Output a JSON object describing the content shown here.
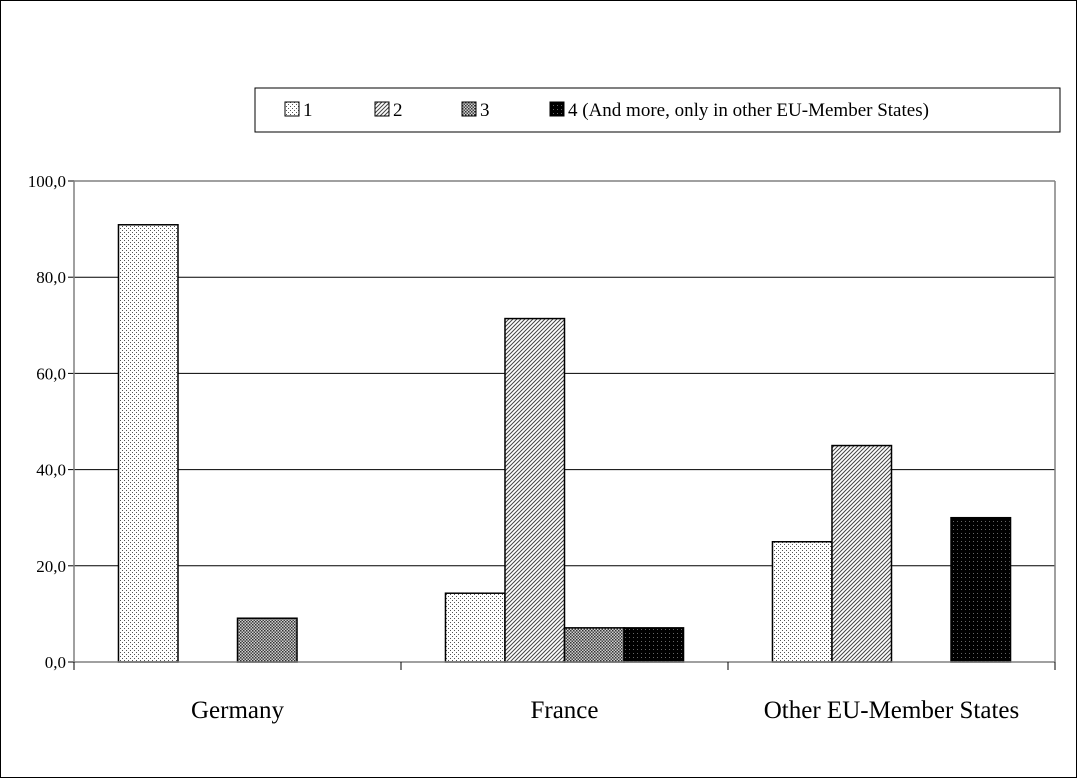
{
  "chart_data": {
    "type": "bar",
    "categories": [
      "Germany",
      "France",
      "Other EU-Member States"
    ],
    "series": [
      {
        "name": "1",
        "values": [
          90.9,
          14.3,
          25.0
        ],
        "pattern": "dots-light"
      },
      {
        "name": "2",
        "values": [
          0,
          71.4,
          45.0
        ],
        "pattern": "diagonal"
      },
      {
        "name": "3",
        "values": [
          9.1,
          7.1,
          0
        ],
        "pattern": "dots-dense"
      },
      {
        "name": "4 (And more, only in other EU-Member States)",
        "values": [
          0,
          7.1,
          30.0
        ],
        "pattern": "black"
      }
    ],
    "yticks": [
      "0,0",
      "20,0",
      "40,0",
      "60,0",
      "80,0",
      "100,0"
    ],
    "ylim": [
      0,
      100
    ],
    "grid": true,
    "legend_position": "top",
    "title": "",
    "xlabel": "",
    "ylabel": ""
  }
}
